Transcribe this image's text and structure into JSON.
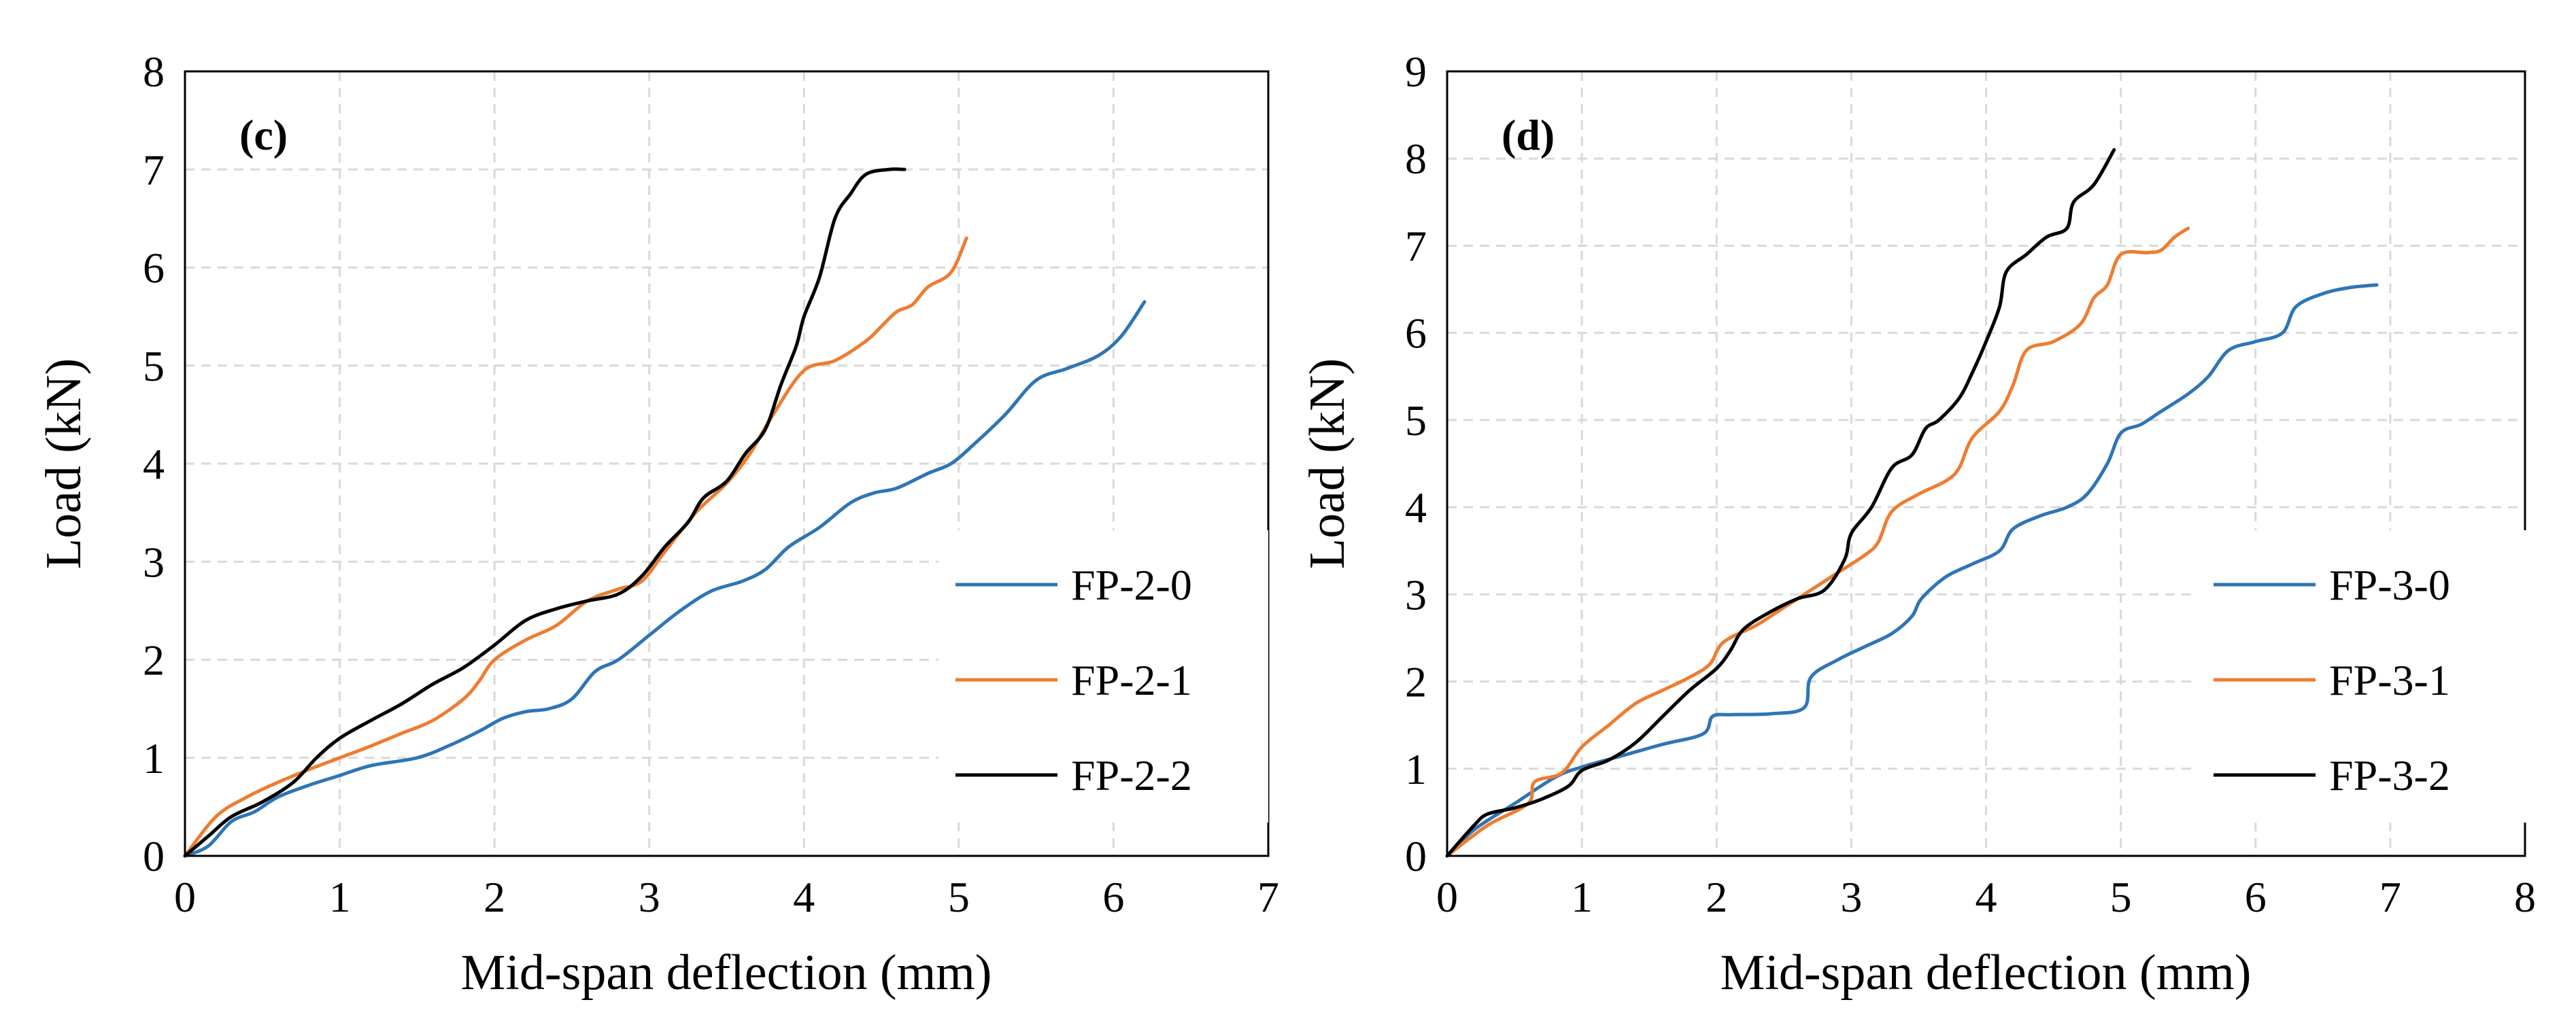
{
  "colors": {
    "blue": "#2E75B6",
    "orange": "#ED7D31",
    "black": "#000000"
  },
  "chart_data": [
    {
      "type": "line",
      "panel_label": "(c)",
      "xlabel": "Mid-span deflection (mm)",
      "ylabel": "Load (kN)",
      "xlim": [
        0,
        7
      ],
      "ylim": [
        0,
        8
      ],
      "xticks": [
        "0",
        "1",
        "2",
        "3",
        "4",
        "5",
        "6",
        "7"
      ],
      "yticks": [
        "0",
        "1",
        "2",
        "3",
        "4",
        "5",
        "6",
        "7",
        "8"
      ],
      "grid": true,
      "legend": "right",
      "series": [
        {
          "name": "FP-2-0",
          "color": "#2E75B6",
          "points": [
            [
              0,
              0
            ],
            [
              0.15,
              0.1
            ],
            [
              0.3,
              0.35
            ],
            [
              0.45,
              0.45
            ],
            [
              0.6,
              0.6
            ],
            [
              0.8,
              0.72
            ],
            [
              1.0,
              0.82
            ],
            [
              1.2,
              0.92
            ],
            [
              1.5,
              1.0
            ],
            [
              1.7,
              1.12
            ],
            [
              1.9,
              1.27
            ],
            [
              2.05,
              1.4
            ],
            [
              2.2,
              1.47
            ],
            [
              2.35,
              1.5
            ],
            [
              2.5,
              1.6
            ],
            [
              2.65,
              1.88
            ],
            [
              2.8,
              2.0
            ],
            [
              3.0,
              2.25
            ],
            [
              3.2,
              2.5
            ],
            [
              3.4,
              2.7
            ],
            [
              3.6,
              2.8
            ],
            [
              3.75,
              2.92
            ],
            [
              3.9,
              3.15
            ],
            [
              4.1,
              3.35
            ],
            [
              4.3,
              3.6
            ],
            [
              4.45,
              3.7
            ],
            [
              4.6,
              3.75
            ],
            [
              4.8,
              3.9
            ],
            [
              4.95,
              4.0
            ],
            [
              5.1,
              4.2
            ],
            [
              5.3,
              4.5
            ],
            [
              5.5,
              4.85
            ],
            [
              5.7,
              4.97
            ],
            [
              5.9,
              5.1
            ],
            [
              6.05,
              5.3
            ],
            [
              6.2,
              5.65
            ]
          ]
        },
        {
          "name": "FP-2-1",
          "color": "#ED7D31",
          "points": [
            [
              0,
              0
            ],
            [
              0.2,
              0.4
            ],
            [
              0.4,
              0.6
            ],
            [
              0.6,
              0.75
            ],
            [
              0.8,
              0.88
            ],
            [
              1.0,
              1.0
            ],
            [
              1.2,
              1.12
            ],
            [
              1.4,
              1.25
            ],
            [
              1.6,
              1.38
            ],
            [
              1.8,
              1.6
            ],
            [
              1.9,
              1.78
            ],
            [
              2.0,
              2.0
            ],
            [
              2.2,
              2.2
            ],
            [
              2.4,
              2.35
            ],
            [
              2.6,
              2.6
            ],
            [
              2.8,
              2.72
            ],
            [
              2.95,
              2.8
            ],
            [
              3.1,
              3.1
            ],
            [
              3.3,
              3.5
            ],
            [
              3.5,
              3.8
            ],
            [
              3.65,
              4.1
            ],
            [
              3.8,
              4.5
            ],
            [
              4.0,
              4.95
            ],
            [
              4.2,
              5.05
            ],
            [
              4.4,
              5.25
            ],
            [
              4.5,
              5.4
            ],
            [
              4.6,
              5.55
            ],
            [
              4.7,
              5.62
            ],
            [
              4.8,
              5.8
            ],
            [
              4.95,
              5.95
            ],
            [
              5.05,
              6.3
            ]
          ]
        },
        {
          "name": "FP-2-2",
          "color": "#000000",
          "points": [
            [
              0,
              0
            ],
            [
              0.15,
              0.2
            ],
            [
              0.3,
              0.4
            ],
            [
              0.5,
              0.55
            ],
            [
              0.7,
              0.75
            ],
            [
              0.85,
              1.0
            ],
            [
              1.0,
              1.2
            ],
            [
              1.2,
              1.38
            ],
            [
              1.4,
              1.55
            ],
            [
              1.6,
              1.75
            ],
            [
              1.8,
              1.92
            ],
            [
              2.0,
              2.15
            ],
            [
              2.2,
              2.4
            ],
            [
              2.4,
              2.52
            ],
            [
              2.6,
              2.6
            ],
            [
              2.8,
              2.67
            ],
            [
              2.95,
              2.85
            ],
            [
              3.1,
              3.15
            ],
            [
              3.25,
              3.4
            ],
            [
              3.35,
              3.65
            ],
            [
              3.5,
              3.82
            ],
            [
              3.62,
              4.1
            ],
            [
              3.75,
              4.35
            ],
            [
              3.85,
              4.8
            ],
            [
              3.95,
              5.2
            ],
            [
              4.0,
              5.5
            ],
            [
              4.1,
              5.9
            ],
            [
              4.2,
              6.5
            ],
            [
              4.3,
              6.75
            ],
            [
              4.4,
              6.95
            ],
            [
              4.55,
              7.0
            ],
            [
              4.65,
              7.0
            ]
          ]
        }
      ]
    },
    {
      "type": "line",
      "panel_label": "(d)",
      "xlabel": "Mid-span deflection (mm)",
      "ylabel": "Load (kN)",
      "xlim": [
        0,
        8
      ],
      "ylim": [
        0,
        9
      ],
      "xticks": [
        "0",
        "1",
        "2",
        "3",
        "4",
        "5",
        "6",
        "7",
        "8"
      ],
      "yticks": [
        "0",
        "1",
        "2",
        "3",
        "4",
        "5",
        "6",
        "7",
        "8",
        "9"
      ],
      "grid": true,
      "legend": "right",
      "series": [
        {
          "name": "FP-3-0",
          "color": "#2E75B6",
          "points": [
            [
              0,
              0
            ],
            [
              0.2,
              0.3
            ],
            [
              0.5,
              0.6
            ],
            [
              0.8,
              0.9
            ],
            [
              1.0,
              1.02
            ],
            [
              1.3,
              1.15
            ],
            [
              1.6,
              1.28
            ],
            [
              1.9,
              1.4
            ],
            [
              1.97,
              1.6
            ],
            [
              2.1,
              1.62
            ],
            [
              2.4,
              1.63
            ],
            [
              2.65,
              1.7
            ],
            [
              2.7,
              2.05
            ],
            [
              2.9,
              2.25
            ],
            [
              3.1,
              2.4
            ],
            [
              3.3,
              2.55
            ],
            [
              3.45,
              2.75
            ],
            [
              3.52,
              2.95
            ],
            [
              3.7,
              3.2
            ],
            [
              3.9,
              3.35
            ],
            [
              4.1,
              3.5
            ],
            [
              4.2,
              3.75
            ],
            [
              4.4,
              3.9
            ],
            [
              4.6,
              4.0
            ],
            [
              4.75,
              4.15
            ],
            [
              4.9,
              4.5
            ],
            [
              5.0,
              4.85
            ],
            [
              5.15,
              4.95
            ],
            [
              5.3,
              5.1
            ],
            [
              5.5,
              5.3
            ],
            [
              5.65,
              5.5
            ],
            [
              5.8,
              5.8
            ],
            [
              6.0,
              5.9
            ],
            [
              6.2,
              6.0
            ],
            [
              6.3,
              6.3
            ],
            [
              6.5,
              6.45
            ],
            [
              6.7,
              6.52
            ],
            [
              6.9,
              6.55
            ]
          ]
        },
        {
          "name": "FP-3-1",
          "color": "#ED7D31",
          "points": [
            [
              0,
              0
            ],
            [
              0.3,
              0.35
            ],
            [
              0.6,
              0.6
            ],
            [
              0.65,
              0.85
            ],
            [
              0.85,
              0.95
            ],
            [
              1.0,
              1.25
            ],
            [
              1.2,
              1.5
            ],
            [
              1.4,
              1.75
            ],
            [
              1.6,
              1.9
            ],
            [
              1.8,
              2.05
            ],
            [
              1.95,
              2.2
            ],
            [
              2.05,
              2.45
            ],
            [
              2.3,
              2.65
            ],
            [
              2.5,
              2.85
            ],
            [
              2.7,
              3.05
            ],
            [
              2.9,
              3.25
            ],
            [
              3.1,
              3.45
            ],
            [
              3.2,
              3.6
            ],
            [
              3.3,
              3.95
            ],
            [
              3.5,
              4.15
            ],
            [
              3.7,
              4.3
            ],
            [
              3.8,
              4.45
            ],
            [
              3.9,
              4.8
            ],
            [
              4.1,
              5.1
            ],
            [
              4.2,
              5.4
            ],
            [
              4.3,
              5.8
            ],
            [
              4.5,
              5.9
            ],
            [
              4.7,
              6.1
            ],
            [
              4.8,
              6.4
            ],
            [
              4.9,
              6.55
            ],
            [
              5.0,
              6.9
            ],
            [
              5.2,
              6.92
            ],
            [
              5.3,
              6.95
            ],
            [
              5.4,
              7.1
            ],
            [
              5.5,
              7.2
            ]
          ]
        },
        {
          "name": "FP-3-2",
          "color": "#000000",
          "points": [
            [
              0,
              0
            ],
            [
              0.2,
              0.35
            ],
            [
              0.3,
              0.48
            ],
            [
              0.5,
              0.55
            ],
            [
              0.7,
              0.65
            ],
            [
              0.9,
              0.8
            ],
            [
              1.0,
              0.98
            ],
            [
              1.2,
              1.1
            ],
            [
              1.4,
              1.3
            ],
            [
              1.6,
              1.6
            ],
            [
              1.8,
              1.9
            ],
            [
              2.0,
              2.15
            ],
            [
              2.1,
              2.35
            ],
            [
              2.2,
              2.6
            ],
            [
              2.4,
              2.8
            ],
            [
              2.6,
              2.95
            ],
            [
              2.8,
              3.05
            ],
            [
              2.95,
              3.4
            ],
            [
              3.0,
              3.7
            ],
            [
              3.15,
              4.0
            ],
            [
              3.3,
              4.45
            ],
            [
              3.45,
              4.6
            ],
            [
              3.55,
              4.9
            ],
            [
              3.65,
              5.0
            ],
            [
              3.8,
              5.25
            ],
            [
              3.9,
              5.55
            ],
            [
              4.0,
              5.9
            ],
            [
              4.1,
              6.3
            ],
            [
              4.15,
              6.7
            ],
            [
              4.3,
              6.9
            ],
            [
              4.45,
              7.1
            ],
            [
              4.6,
              7.2
            ],
            [
              4.65,
              7.5
            ],
            [
              4.8,
              7.7
            ],
            [
              4.95,
              8.1
            ]
          ]
        }
      ]
    }
  ]
}
